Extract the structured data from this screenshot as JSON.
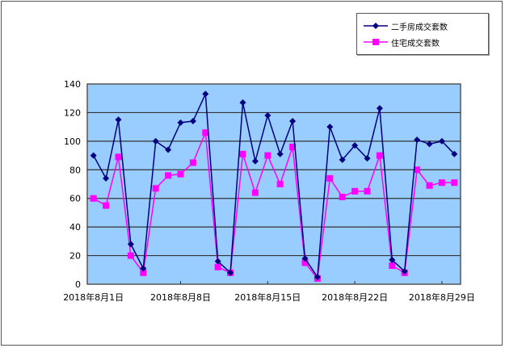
{
  "chart_data": {
    "type": "line",
    "title": "",
    "xlabel": "",
    "ylabel": "",
    "ylim": [
      0,
      140
    ],
    "yticks": [
      0,
      20,
      40,
      60,
      80,
      100,
      120,
      140
    ],
    "grid": true,
    "legend_position": "top-right",
    "plot_background": "#99ccff",
    "x": [
      "8/1",
      "8/2",
      "8/3",
      "8/4",
      "8/5",
      "8/6",
      "8/7",
      "8/8",
      "8/9",
      "8/10",
      "8/11",
      "8/12",
      "8/13",
      "8/14",
      "8/15",
      "8/16",
      "8/17",
      "8/18",
      "8/19",
      "8/20",
      "8/21",
      "8/22",
      "8/23",
      "8/24",
      "8/25",
      "8/26",
      "8/27",
      "8/28",
      "8/29",
      "8/30"
    ],
    "xtick_labels": [
      {
        "index": 0,
        "label": "2018年8月1日"
      },
      {
        "index": 7,
        "label": "2018年8月8日"
      },
      {
        "index": 14,
        "label": "2018年8月15日"
      },
      {
        "index": 21,
        "label": "2018年8月22日"
      },
      {
        "index": 28,
        "label": "2018年8月29日"
      }
    ],
    "series": [
      {
        "name": "二手房成交套数",
        "color": "#000080",
        "marker": "diamond",
        "values": [
          90,
          74,
          115,
          28,
          11,
          100,
          94,
          113,
          114,
          133,
          16,
          8,
          127,
          86,
          118,
          91,
          114,
          18,
          5,
          110,
          87,
          97,
          88,
          123,
          17,
          9,
          101,
          98,
          100,
          91
        ]
      },
      {
        "name": "住宅成交套数",
        "color": "#ff00ff",
        "marker": "square",
        "values": [
          60,
          55,
          89,
          20,
          8,
          67,
          76,
          77,
          85,
          106,
          12,
          8,
          91,
          64,
          90,
          70,
          96,
          15,
          4,
          74,
          61,
          65,
          65,
          90,
          13,
          8,
          80,
          69,
          71,
          71
        ]
      }
    ]
  },
  "legend": {
    "items": [
      {
        "label": "二手房成交套数"
      },
      {
        "label": "住宅成交套数"
      }
    ]
  }
}
